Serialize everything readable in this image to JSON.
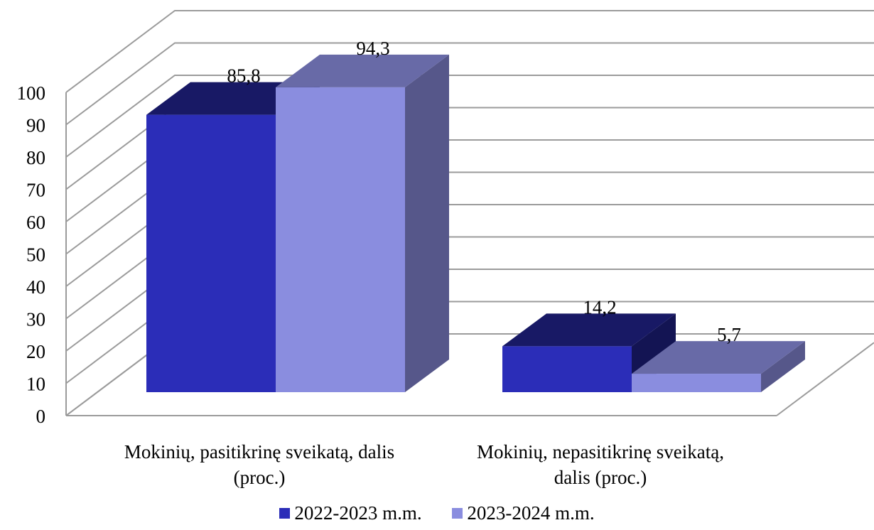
{
  "chart_data": {
    "type": "bar",
    "subtype": "3d-clustered-column",
    "categories": [
      "Mokinių, pasitikrinę sveikatą, dalis (proc.)",
      "Mokinių, nepasitikrinę sveikatą, dalis (proc.)"
    ],
    "category_lines": [
      [
        "Mokinių, pasitikrinę sveikatą, dalis",
        "(proc.)"
      ],
      [
        "Mokinių, nepasitikrinę sveikatą,",
        "dalis (proc.)"
      ]
    ],
    "series": [
      {
        "name": "2022-2023 m.m.",
        "values": [
          85.8,
          14.2
        ],
        "value_labels": [
          "85,8",
          "14,2"
        ],
        "color": "#2b2db8"
      },
      {
        "name": "2023-2024 m.m.",
        "values": [
          94.3,
          5.7
        ],
        "value_labels": [
          "94,3",
          "5,7"
        ],
        "color": "#8a8ddf"
      }
    ],
    "yticks": [
      "0",
      "10",
      "20",
      "30",
      "40",
      "50",
      "60",
      "70",
      "80",
      "90",
      "100"
    ],
    "ylim": [
      0,
      100
    ],
    "grid": true,
    "legend_position": "bottom",
    "title": "",
    "xlabel": "",
    "ylabel": ""
  }
}
